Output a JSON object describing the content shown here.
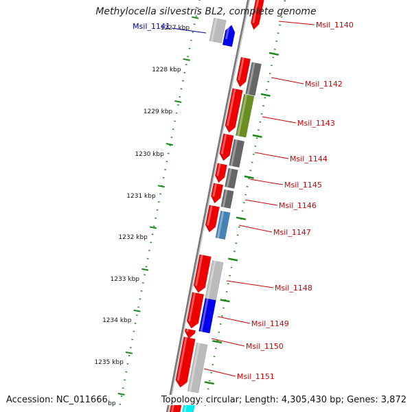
{
  "title": "Methylocella silvestris BL2, complete genome",
  "accession": "Accession: NC_011666",
  "topology": "Topology: circular; Length: 4,305,430 bp; Genes: 3,872",
  "ticks": [
    {
      "label": "1227 kbp"
    },
    {
      "label": "1228 kbp"
    },
    {
      "label": "1229 kbp"
    },
    {
      "label": "1230 kbp"
    },
    {
      "label": "1231 kbp"
    },
    {
      "label": "1232 kbp"
    },
    {
      "label": "1233 kbp"
    },
    {
      "label": "1234 kbp"
    },
    {
      "label": "1235 kbp"
    },
    {
      "label": "1236 kbp"
    }
  ],
  "gene_labels": [
    {
      "text": "Msil_1140",
      "color": "#cc0000"
    },
    {
      "text": "Msil_1141",
      "color": "#000099"
    },
    {
      "text": "Msil_1142",
      "color": "#cc0000"
    },
    {
      "text": "Msil_1143",
      "color": "#cc0000"
    },
    {
      "text": "Msil_1144",
      "color": "#cc0000"
    },
    {
      "text": "Msil_1145",
      "color": "#cc0000"
    },
    {
      "text": "Msil_1146",
      "color": "#cc0000"
    },
    {
      "text": "Msil_1147",
      "color": "#cc0000"
    },
    {
      "text": "Msil_1148",
      "color": "#cc0000"
    },
    {
      "text": "Msil_1149",
      "color": "#cc0000"
    },
    {
      "text": "Msil_1150",
      "color": "#cc0000"
    },
    {
      "text": "Msil_1151",
      "color": "#cc0000"
    }
  ],
  "colors": {
    "backbone": "#7a7a7a",
    "tick": "#1a8a1a",
    "cds": "#ee0000",
    "gray": "#666666",
    "lightgray": "#bbbbbb",
    "olive": "#6b8e23",
    "steelblue": "#4682b4",
    "blue": "#0000ee",
    "cyan": "#00eeee"
  }
}
